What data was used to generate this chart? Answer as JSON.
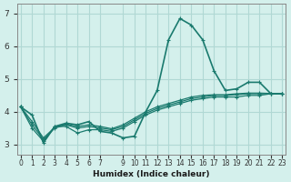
{
  "xlabel": "Humidex (Indice chaleur)",
  "ylabel": "",
  "background_color": "#d4f0ec",
  "grid_color": "#b0d8d4",
  "line_color": "#1a7a6e",
  "xlim": [
    0,
    23
  ],
  "ylim": [
    2.7,
    7.3
  ],
  "yticks": [
    3,
    4,
    5,
    6,
    7
  ],
  "xticks": [
    0,
    1,
    2,
    3,
    4,
    5,
    6,
    7,
    9,
    10,
    11,
    12,
    13,
    14,
    15,
    16,
    17,
    18,
    19,
    20,
    21,
    22,
    23
  ],
  "series": [
    [
      4.15,
      3.9,
      3.05,
      3.55,
      3.65,
      3.6,
      3.7,
      3.4,
      3.35,
      3.2,
      3.25,
      4.0,
      4.65,
      6.2,
      6.85,
      6.65,
      6.2,
      5.25,
      4.65,
      4.7,
      4.9,
      4.9,
      4.55,
      4.55
    ],
    [
      4.15,
      3.5,
      3.1,
      3.55,
      3.55,
      3.35,
      3.45,
      3.45,
      3.4,
      3.5,
      3.7,
      3.9,
      4.05,
      4.15,
      4.25,
      4.35,
      4.4,
      4.45,
      4.45,
      4.45,
      4.5,
      4.5,
      4.55,
      4.55
    ],
    [
      4.15,
      3.6,
      3.15,
      3.5,
      3.6,
      3.5,
      3.55,
      3.5,
      3.45,
      3.55,
      3.75,
      3.95,
      4.1,
      4.2,
      4.3,
      4.4,
      4.45,
      4.5,
      4.5,
      4.52,
      4.55,
      4.55,
      4.55,
      4.55
    ],
    [
      4.15,
      3.7,
      3.2,
      3.52,
      3.62,
      3.55,
      3.6,
      3.55,
      3.48,
      3.6,
      3.8,
      4.0,
      4.15,
      4.25,
      4.35,
      4.45,
      4.5,
      4.52,
      4.52,
      4.55,
      4.57,
      4.57,
      4.56,
      4.56
    ]
  ]
}
